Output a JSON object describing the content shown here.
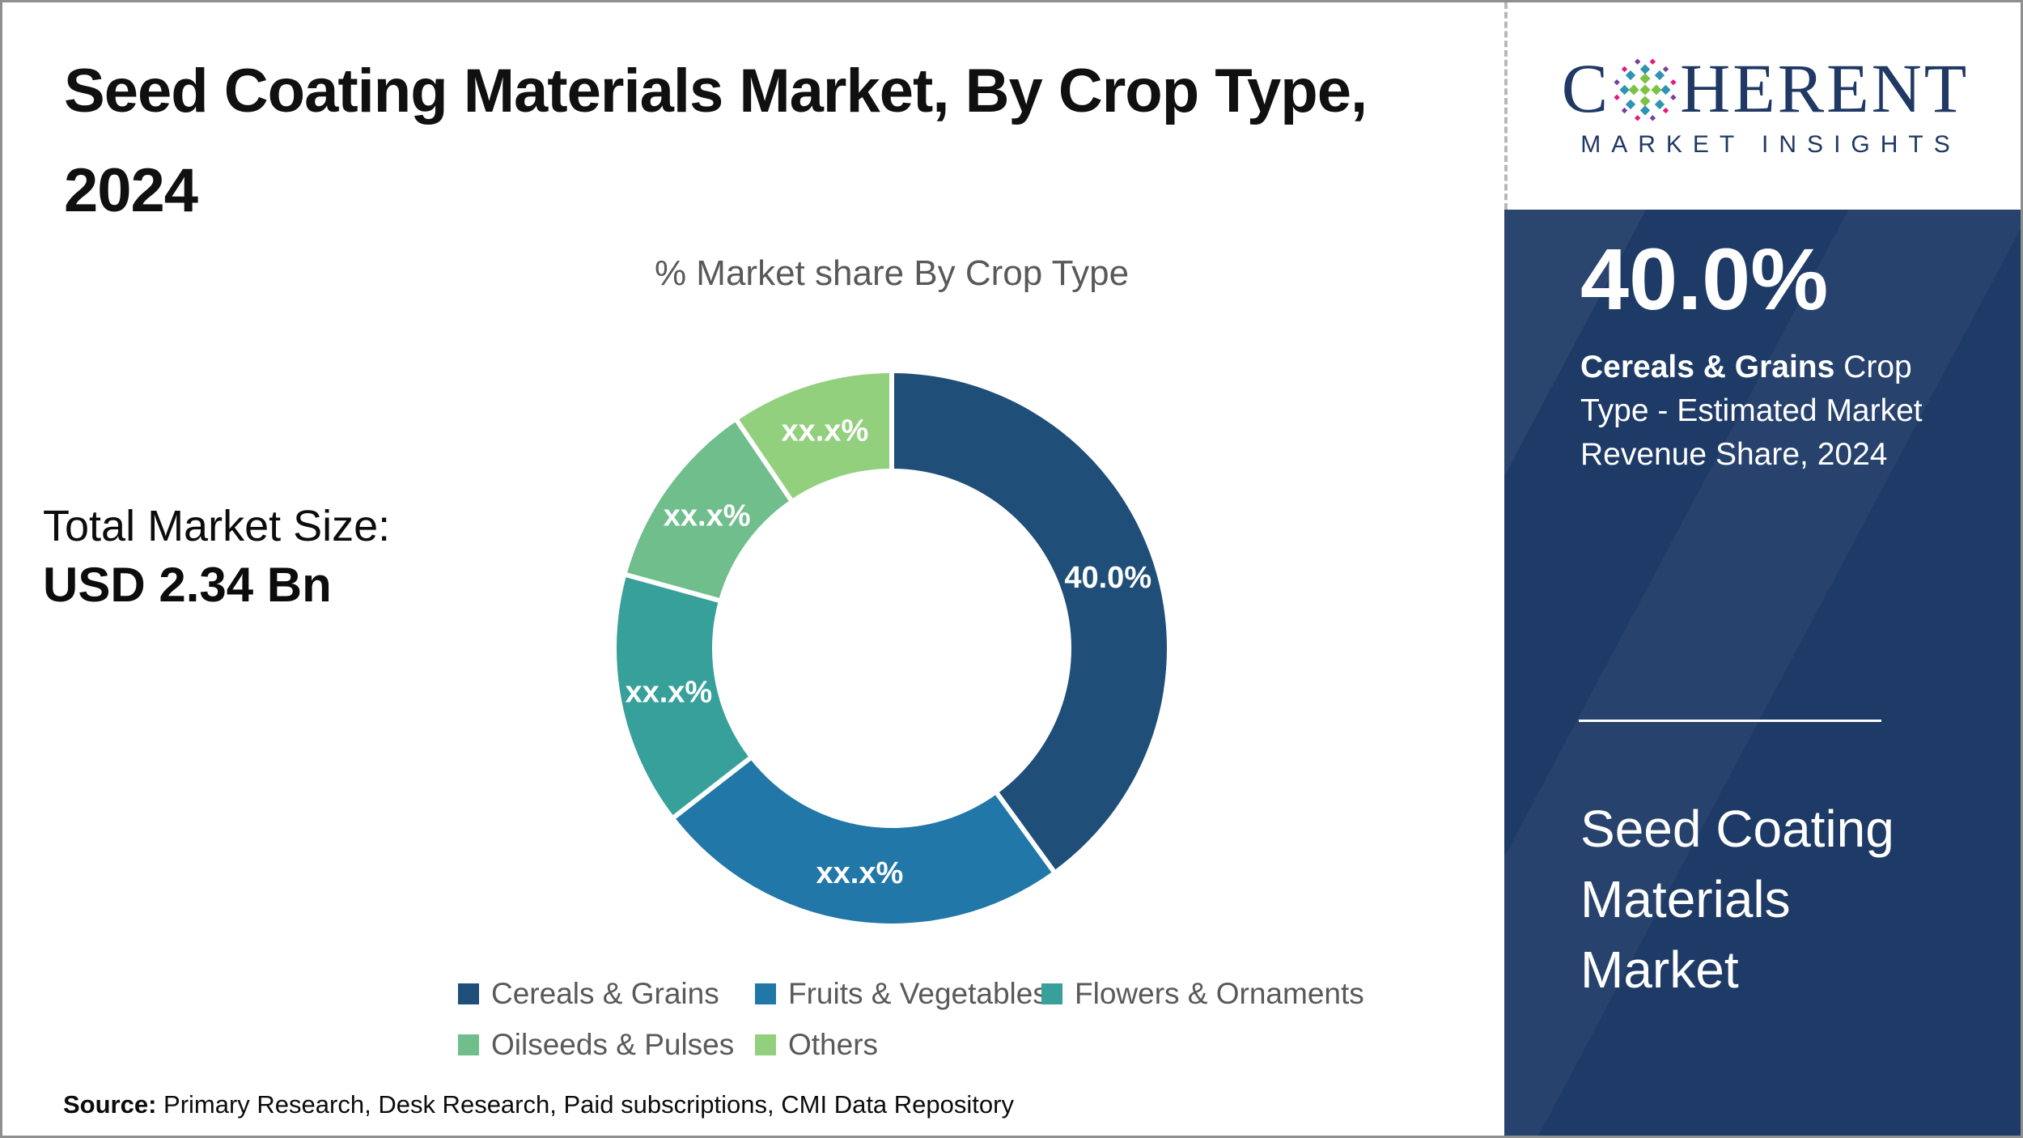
{
  "page": {
    "title_line1": "Seed Coating Materials Market, By Crop Type,",
    "title_line2": "2024",
    "total_market_size_label": "Total Market Size:",
    "total_market_size_value": "USD 2.34 Bn",
    "source_label": "Source:",
    "source_text": " Primary Research, Desk Research, Paid subscriptions, CMI Data Repository"
  },
  "logo": {
    "brand_prefix": "C",
    "brand_suffix": "HERENT",
    "subtitle": "MARKET INSIGHTS",
    "brand_color": "#1f3864",
    "mosaic_colors": {
      "green": "#7dc242",
      "teal": "#2e93b5",
      "purple": "#7c3f98",
      "magenta": "#e3197e"
    }
  },
  "sidebar": {
    "background_color": "#1e3a66",
    "highlight_value": "40.0%",
    "highlight_bold": "Cereals & Grains",
    "highlight_rest": " Crop Type - Estimated Market Revenue Share, 2024",
    "market_name": "Seed Coating Materials Market"
  },
  "chart_data": {
    "type": "pie",
    "subtype": "donut",
    "title": "% Market share By Crop Type",
    "start_angle_deg": 0,
    "direction": "clockwise",
    "inner_radius_ratio": 0.65,
    "legend_position": "bottom",
    "series": [
      {
        "name": "Cereals & Grains",
        "value": 40.0,
        "label": "40.0%",
        "color": "#1F4E78"
      },
      {
        "name": "Fruits & Vegetables",
        "value": 24.5,
        "label": "xx.x%",
        "color": "#2077A8"
      },
      {
        "name": "Flowers & Ornaments",
        "value": 14.8,
        "label": "xx.x%",
        "color": "#38A09B"
      },
      {
        "name": "Oilseeds & Pulses",
        "value": 11.2,
        "label": "xx.x%",
        "color": "#6FBE8C"
      },
      {
        "name": "Others",
        "value": 9.5,
        "label": "xx.x%",
        "color": "#93D07E"
      }
    ]
  }
}
